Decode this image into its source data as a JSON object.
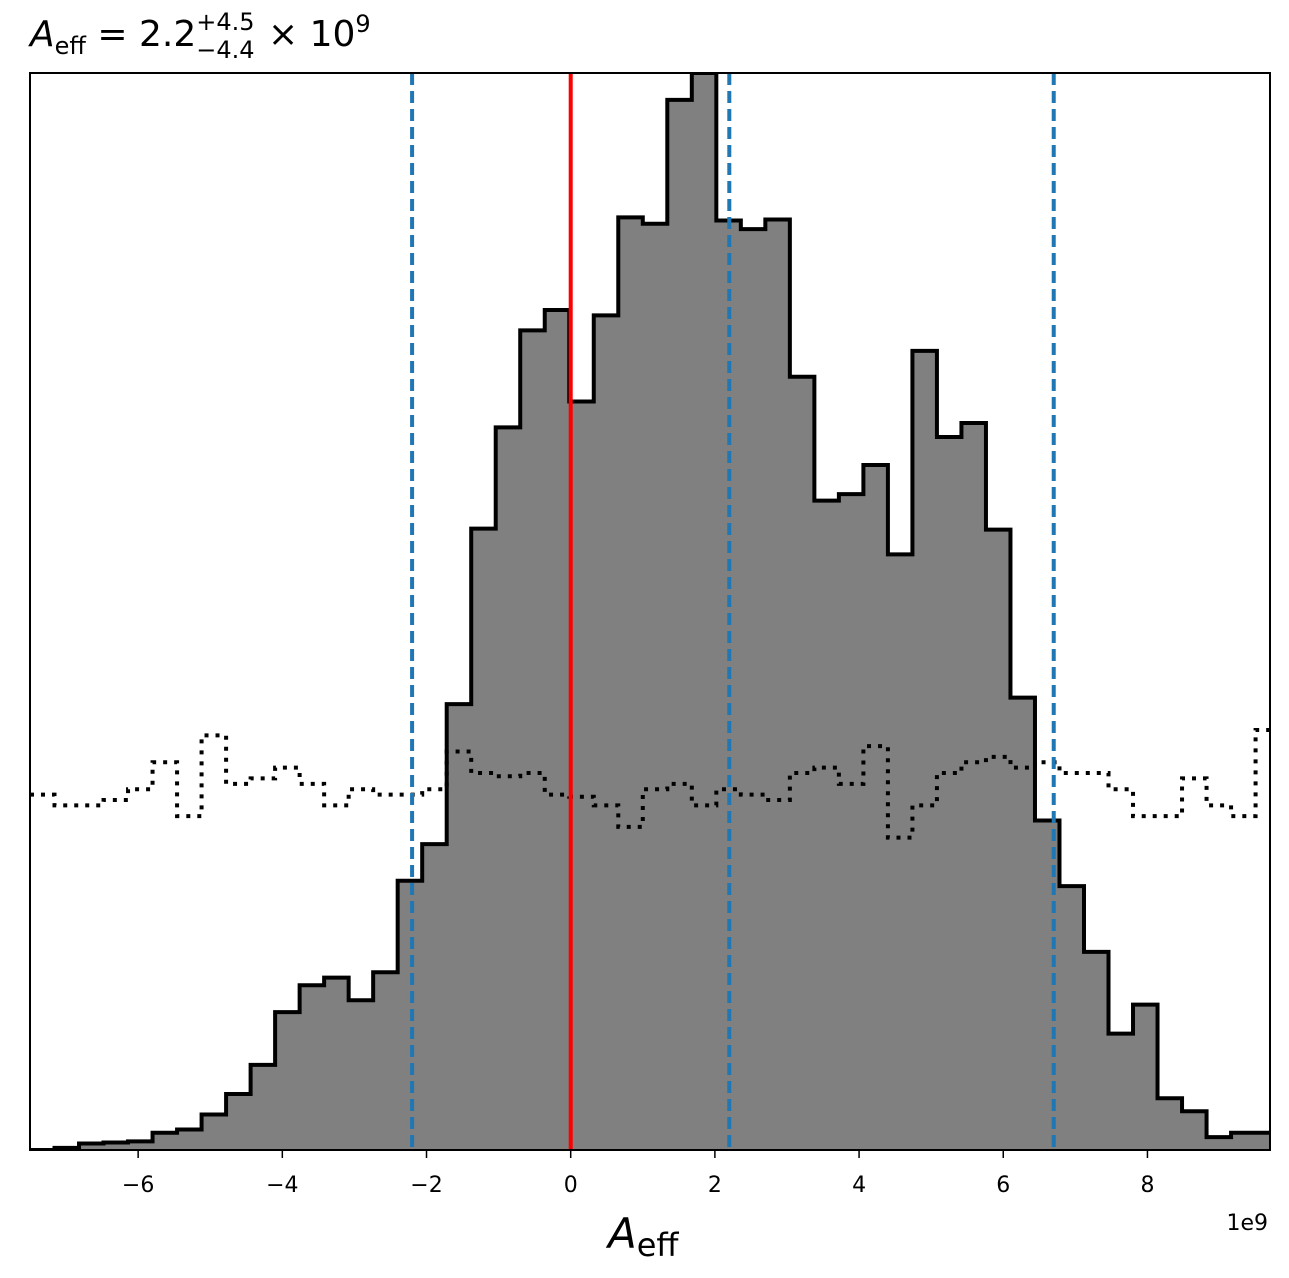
{
  "chart_data": {
    "type": "histogram",
    "title": {
      "symbol": "A",
      "symbol_sub": "eff",
      "equals": " = ",
      "median": "2.2",
      "err_plus": "+4.5",
      "err_minus": "−4.4",
      "times": " × 10",
      "exponent": "9"
    },
    "xlabel": {
      "symbol": "A",
      "sub": "eff"
    },
    "x_offset_label": "1e9",
    "xlim": [
      -7.5,
      9.7
    ],
    "ylim": [
      0,
      1
    ],
    "x_ticks": [
      -6,
      -4,
      -2,
      0,
      2,
      4,
      6,
      8
    ],
    "x_tick_labels": [
      "−6",
      "−4",
      "−2",
      "0",
      "2",
      "4",
      "6",
      "8"
    ],
    "y_ticks_visible": false,
    "grid": false,
    "posterior": {
      "fill_color": "#808080",
      "edge_color": "#000000",
      "bin_edges": [
        -7.5,
        -7.16,
        -6.82,
        -6.48,
        -6.14,
        -5.8,
        -5.46,
        -5.12,
        -4.78,
        -4.44,
        -4.1,
        -3.76,
        -3.42,
        -3.08,
        -2.74,
        -2.4,
        -2.06,
        -1.72,
        -1.38,
        -1.04,
        -0.7,
        -0.36,
        -0.02,
        0.32,
        0.66,
        1.0,
        1.34,
        1.68,
        2.02,
        2.36,
        2.7,
        3.04,
        3.38,
        3.72,
        4.06,
        4.4,
        4.74,
        5.08,
        5.42,
        5.76,
        6.1,
        6.44,
        6.78,
        7.12,
        7.46,
        7.8,
        8.14,
        8.48,
        8.82,
        9.16,
        9.5,
        9.84
      ],
      "counts": [
        0.0,
        0.002,
        0.006,
        0.007,
        0.008,
        0.016,
        0.019,
        0.033,
        0.052,
        0.079,
        0.128,
        0.153,
        0.16,
        0.139,
        0.165,
        0.25,
        0.284,
        0.414,
        0.577,
        0.671,
        0.761,
        0.78,
        0.695,
        0.775,
        0.866,
        0.86,
        0.975,
        1.0,
        0.863,
        0.855,
        0.864,
        0.718,
        0.603,
        0.609,
        0.636,
        0.553,
        0.742,
        0.662,
        0.675,
        0.576,
        0.42,
        0.306,
        0.245,
        0.184,
        0.108,
        0.135,
        0.048,
        0.036,
        0.012,
        0.016,
        0.016
      ]
    },
    "prior": {
      "style": "dotted",
      "color": "#000000",
      "bin_edges": [
        -7.5,
        -7.16,
        -6.82,
        -6.48,
        -6.14,
        -5.8,
        -5.46,
        -5.12,
        -4.78,
        -4.44,
        -4.1,
        -3.76,
        -3.42,
        -3.08,
        -2.74,
        -2.4,
        -2.06,
        -1.72,
        -1.38,
        -1.04,
        -0.7,
        -0.36,
        -0.02,
        0.32,
        0.66,
        1.0,
        1.34,
        1.68,
        2.02,
        2.36,
        2.7,
        3.04,
        3.38,
        3.72,
        4.06,
        4.4,
        4.74,
        5.08,
        5.42,
        5.76,
        6.1,
        6.44,
        6.78,
        7.12,
        7.46,
        7.8,
        8.14,
        8.48,
        8.82,
        9.16,
        9.5,
        9.84
      ],
      "counts": [
        0.33,
        0.32,
        0.32,
        0.325,
        0.335,
        0.36,
        0.31,
        0.385,
        0.34,
        0.345,
        0.355,
        0.34,
        0.32,
        0.335,
        0.33,
        0.33,
        0.335,
        0.37,
        0.35,
        0.347,
        0.35,
        0.33,
        0.328,
        0.32,
        0.3,
        0.335,
        0.34,
        0.32,
        0.335,
        0.33,
        0.325,
        0.35,
        0.355,
        0.34,
        0.375,
        0.29,
        0.32,
        0.35,
        0.36,
        0.365,
        0.355,
        0.36,
        0.35,
        0.35,
        0.335,
        0.31,
        0.31,
        0.345,
        0.32,
        0.31,
        0.39
      ]
    },
    "reference_lines": [
      {
        "x": 0.0,
        "color": "#ff0000",
        "style": "solid"
      },
      {
        "x": -2.2,
        "color": "#1f77b4",
        "style": "dashed"
      },
      {
        "x": 2.2,
        "color": "#1f77b4",
        "style": "dashed"
      },
      {
        "x": 6.7,
        "color": "#1f77b4",
        "style": "dashed"
      }
    ]
  }
}
